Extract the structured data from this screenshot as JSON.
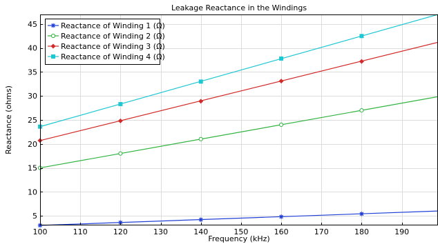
{
  "chart_data": {
    "type": "line",
    "title": "Leakage Reactance in the Windings",
    "xlabel": "Frequency (kHz)",
    "ylabel": "Reactance (ohms)",
    "xlim": [
      100,
      199
    ],
    "ylim": [
      3,
      47
    ],
    "x_ticks": [
      100,
      110,
      120,
      130,
      140,
      150,
      160,
      170,
      180,
      190
    ],
    "y_ticks": [
      5,
      10,
      15,
      20,
      25,
      30,
      35,
      40,
      45
    ],
    "grid": true,
    "legend_position": "top-left",
    "series": [
      {
        "name": "Reactance of  Winding 1 (Ω)",
        "color": "#1f3fd6",
        "marker": "star",
        "line": [
          [
            100,
            3.0
          ],
          [
            199,
            6.0
          ]
        ],
        "points": [
          [
            100,
            3.0
          ],
          [
            120,
            3.6
          ],
          [
            140,
            4.2
          ],
          [
            160,
            4.8
          ],
          [
            180,
            5.4
          ]
        ]
      },
      {
        "name": "Reactance of Winding 2 (Ω)",
        "color": "#2fb33f",
        "marker": "circle",
        "line": [
          [
            100,
            15.0
          ],
          [
            199,
            29.85
          ]
        ],
        "points": [
          [
            100,
            15.0
          ],
          [
            120,
            18.0
          ],
          [
            140,
            21.0
          ],
          [
            160,
            24.0
          ],
          [
            180,
            27.0
          ]
        ]
      },
      {
        "name": "Reactance of Winding 3 (Ω)",
        "color": "#d32a2a",
        "marker": "diamond",
        "line": [
          [
            100,
            20.7
          ],
          [
            199,
            41.2
          ]
        ],
        "points": [
          [
            100,
            20.7
          ],
          [
            120,
            24.8
          ],
          [
            140,
            28.9
          ],
          [
            160,
            33.1
          ],
          [
            180,
            37.2
          ]
        ]
      },
      {
        "name": "Reactance of Winding 4 (Ω)",
        "color": "#1fc7d3",
        "marker": "square",
        "line": [
          [
            100,
            23.6
          ],
          [
            199,
            47.0
          ]
        ],
        "points": [
          [
            100,
            23.6
          ],
          [
            120,
            28.3
          ],
          [
            140,
            33.0
          ],
          [
            160,
            37.8
          ],
          [
            180,
            42.5
          ]
        ]
      }
    ]
  }
}
